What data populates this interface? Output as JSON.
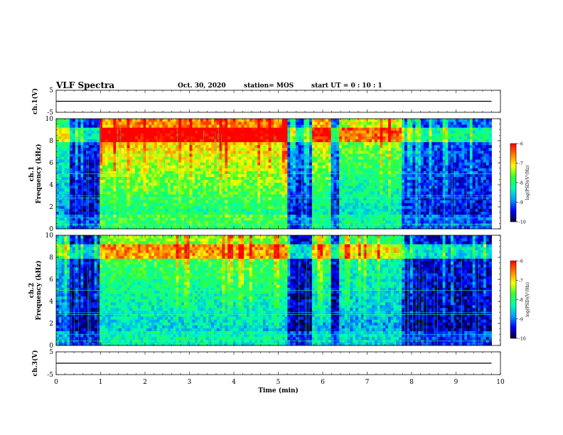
{
  "header": {
    "title": "VLF Spectra",
    "date": "Oct. 30, 2020",
    "station": "station= MOS",
    "start": "start  UT =   0 : 10 : 1"
  },
  "colors": {
    "colormap": [
      "#000033",
      "#0000ff",
      "#00a0ff",
      "#00ffb0",
      "#33ff33",
      "#ffff00",
      "#ff8000",
      "#ff0000",
      "#ffffff"
    ]
  },
  "chart_data": [
    {
      "type": "line",
      "id": "ch1v",
      "ylabel": "ch.1(V)",
      "ylim": [
        -5,
        5
      ],
      "yticks": [
        "5",
        "-5"
      ],
      "series": [
        {
          "x": [
            0,
            9.8
          ],
          "y": [
            0,
            0
          ]
        }
      ]
    },
    {
      "type": "heatmap",
      "id": "ch1",
      "ylabel": "ch.1\nFrequency (kHz)",
      "ylim": [
        0,
        10
      ],
      "yticks": [
        "0",
        "2",
        "4",
        "6",
        "8",
        "10"
      ],
      "xlim": [
        0,
        10
      ],
      "data_extent_min": 9.8,
      "colorbar": {
        "label": "log(PSD)(V²/Hz)",
        "range": [
          -10,
          -6
        ],
        "ticks": [
          "-6",
          "-7",
          "-8",
          "-9",
          "-10"
        ]
      },
      "segments": [
        {
          "t": [
            0,
            0.3
          ],
          "level": 0.45
        },
        {
          "t": [
            0.3,
            1.0
          ],
          "level": 0.15
        },
        {
          "t": [
            1.0,
            5.2
          ],
          "level": 0.75
        },
        {
          "t": [
            5.2,
            5.75
          ],
          "level": 0.2
        },
        {
          "t": [
            5.75,
            6.2
          ],
          "level": 0.7
        },
        {
          "t": [
            6.2,
            6.35
          ],
          "level": 0.25
        },
        {
          "t": [
            6.35,
            7.75
          ],
          "level": 0.6
        },
        {
          "t": [
            7.75,
            9.8
          ],
          "level": 0.2
        }
      ]
    },
    {
      "type": "heatmap",
      "id": "ch2",
      "ylabel": "ch.2\nFrequency (kHz)",
      "ylim": [
        0,
        10
      ],
      "yticks": [
        "0",
        "2",
        "4",
        "6",
        "8",
        "10"
      ],
      "xlim": [
        0,
        10
      ],
      "data_extent_min": 9.8,
      "colorbar": {
        "label": "log(PSD)(V²/Hz)",
        "range": [
          -10,
          -6
        ],
        "ticks": [
          "-6",
          "-7",
          "-8",
          "-9",
          "-10"
        ]
      },
      "segments": [
        {
          "t": [
            0,
            0.3
          ],
          "level": 0.35
        },
        {
          "t": [
            0.3,
            1.0
          ],
          "level": 0.1
        },
        {
          "t": [
            1.0,
            5.2
          ],
          "level": 0.55
        },
        {
          "t": [
            5.2,
            5.75
          ],
          "level": 0.12
        },
        {
          "t": [
            5.75,
            6.2
          ],
          "level": 0.5
        },
        {
          "t": [
            6.2,
            6.35
          ],
          "level": 0.15
        },
        {
          "t": [
            6.35,
            7.75
          ],
          "level": 0.45
        },
        {
          "t": [
            7.75,
            9.8
          ],
          "level": 0.12
        }
      ]
    },
    {
      "type": "line",
      "id": "ch3v",
      "ylabel": "ch.3(V)",
      "ylim": [
        -5,
        5
      ],
      "yticks": [
        "5",
        "-5"
      ],
      "xlabel": "Time (min)",
      "xticks": [
        "0",
        "1",
        "2",
        "3",
        "4",
        "5",
        "6",
        "7",
        "8",
        "9",
        "10"
      ],
      "series": [
        {
          "x": [
            0,
            9.8
          ],
          "y": [
            0,
            0
          ]
        }
      ]
    }
  ]
}
